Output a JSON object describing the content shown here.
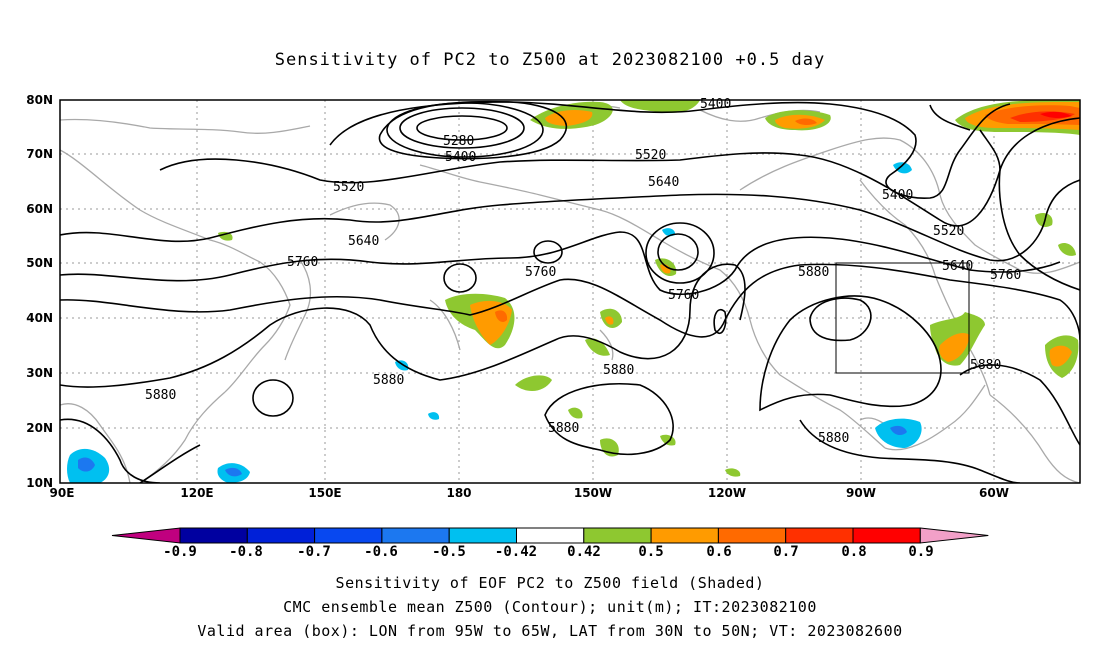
{
  "title": "Sensitivity of PC2 to Z500 at 2023082100 +0.5 day",
  "lat_labels": [
    "80N",
    "70N",
    "60N",
    "50N",
    "40N",
    "30N",
    "20N",
    "10N"
  ],
  "lon_labels": [
    "90E",
    "120E",
    "150E",
    "180",
    "150W",
    "120W",
    "90W",
    "60W"
  ],
  "contour_labels": [
    {
      "text": "5400"
    },
    {
      "text": "5280"
    },
    {
      "text": "5400"
    },
    {
      "text": "5520"
    },
    {
      "text": "5520"
    },
    {
      "text": "5640"
    },
    {
      "text": "5640"
    },
    {
      "text": "5400"
    },
    {
      "text": "5520"
    },
    {
      "text": "5640"
    },
    {
      "text": "5760"
    },
    {
      "text": "5760"
    },
    {
      "text": "5760"
    },
    {
      "text": "5760"
    },
    {
      "text": "5880"
    },
    {
      "text": "5880"
    },
    {
      "text": "5880"
    },
    {
      "text": "5880"
    },
    {
      "text": "5880"
    },
    {
      "text": "5880"
    },
    {
      "text": "5880"
    }
  ],
  "colorbar": {
    "tick_labels": [
      "-0.9",
      "-0.8",
      "-0.7",
      "-0.6",
      "-0.5",
      "-0.42",
      "0.42",
      "0.5",
      "0.6",
      "0.7",
      "0.8",
      "0.9"
    ],
    "colors": {
      "below": "#c0007f",
      "bins": [
        "#0000a0",
        "#0020d8",
        "#0848f0",
        "#1c78f0",
        "#00c0f0",
        "#ffffff",
        "#8ec830",
        "#ff9b00",
        "#ff6a00",
        "#ff3000",
        "#ff0000"
      ],
      "above": "#f2a0c8"
    }
  },
  "captions": {
    "line1": "Sensitivity of EOF PC2 to Z500 field (Shaded)",
    "line2": "CMC ensemble mean Z500 (Contour); unit(m); IT:2023082100",
    "line3": "Valid area (box): LON from 95W to 65W, LAT from 30N to 50N; VT: 2023082600"
  }
}
